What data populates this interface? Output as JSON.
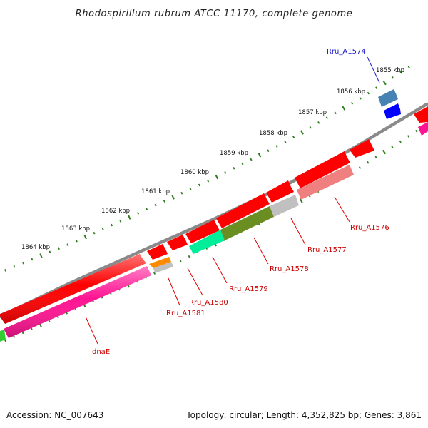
{
  "title": "Rhodospirillum rubrum ATCC 11170, complete genome",
  "footer": {
    "accession": "Accession: NC_007643",
    "summary": "Topology: circular; Length: 4,352,825 bp; Genes: 3,861"
  },
  "colors": {
    "backbone": "#8a8a8a",
    "tick": "#2e7d1e",
    "label_red": "#cc0000",
    "label_blue": "#1a1acc",
    "leader_red": "#dd0000",
    "leader_blue": "#2222cc"
  },
  "scale": {
    "labels": [
      "1855 kbp",
      "1856 kbp",
      "1857 kbp",
      "1858 kbp",
      "1859 kbp",
      "1860 kbp",
      "1861 kbp",
      "1862 kbp",
      "1863 kbp",
      "1864 kbp"
    ]
  },
  "gene_labels": [
    {
      "name": "Rru_A1574",
      "color": "#1a1acc"
    },
    {
      "name": "Rru_A1576",
      "color": "#cc0000"
    },
    {
      "name": "Rru_A1577",
      "color": "#cc0000"
    },
    {
      "name": "Rru_A1578",
      "color": "#cc0000"
    },
    {
      "name": "Rru_A1579",
      "color": "#cc0000"
    },
    {
      "name": "Rru_A1580",
      "color": "#cc0000"
    },
    {
      "name": "Rru_A1581",
      "color": "#cc0000"
    },
    {
      "name": "dnaE",
      "color": "#cc0000"
    }
  ],
  "features": [
    {
      "track": "outer",
      "strand": "forward",
      "color": "#ff0000",
      "gene": ""
    },
    {
      "track": "inner",
      "strand": "reverse",
      "color": "#ff1493",
      "gene": "dnaE"
    },
    {
      "track": "inner",
      "strand": "reverse",
      "color": "#ff8c00",
      "gene": "Rru_A1581"
    },
    {
      "track": "inner",
      "strand": "reverse",
      "color": "#00ee99",
      "gene": "Rru_A1579"
    },
    {
      "track": "inner",
      "strand": "reverse",
      "color": "#6b8e23",
      "gene": "Rru_A1578"
    },
    {
      "track": "inner",
      "strand": "reverse",
      "color": "#c0c0c0",
      "gene": "Rru_A1577"
    },
    {
      "track": "inner",
      "strand": "reverse",
      "color": "#f08080",
      "gene": "Rru_A1576"
    },
    {
      "track": "inner",
      "strand": "reverse",
      "color": "#0000ff",
      "gene": ""
    },
    {
      "track": "outer",
      "strand": "forward",
      "color": "#4682b4",
      "gene": "Rru_A1574"
    }
  ]
}
